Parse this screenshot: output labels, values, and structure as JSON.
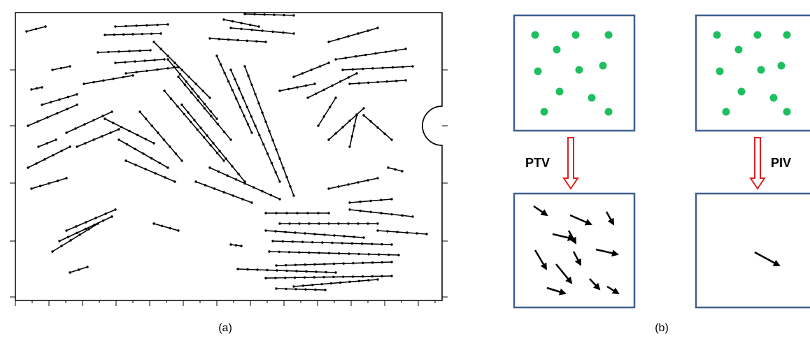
{
  "panel_a": {
    "label": "(a)"
  },
  "panel_b": {
    "label": "(b)",
    "methods": [
      "PTV",
      "PIV"
    ]
  }
}
